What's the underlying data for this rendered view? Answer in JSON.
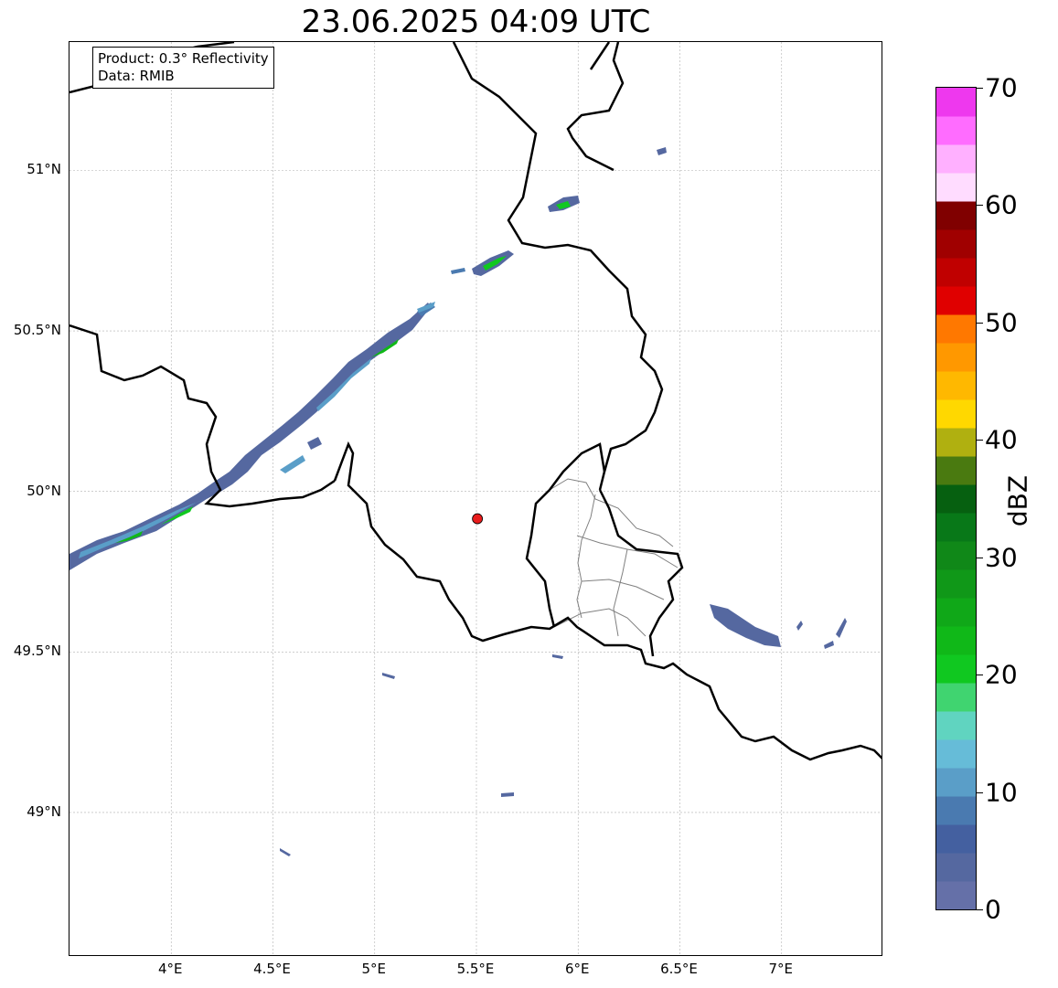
{
  "title": "23.06.2025 04:09 UTC",
  "info_box": {
    "product": "Product: 0.3° Reflectivity",
    "data": "Data: RMIB"
  },
  "map": {
    "lon_range": [
      3.5,
      7.5
    ],
    "lat_range": [
      48.55,
      51.4
    ],
    "x_ticks": [
      {
        "value": 4.0,
        "label": "4°E"
      },
      {
        "value": 4.5,
        "label": "4.5°E"
      },
      {
        "value": 5.0,
        "label": "5°E"
      },
      {
        "value": 5.5,
        "label": "5.5°E"
      },
      {
        "value": 6.0,
        "label": "6°E"
      },
      {
        "value": 6.5,
        "label": "6.5°E"
      },
      {
        "value": 7.0,
        "label": "7°E"
      }
    ],
    "y_ticks": [
      {
        "value": 51.0,
        "label": "51°N"
      },
      {
        "value": 50.5,
        "label": "50.5°N"
      },
      {
        "value": 50.0,
        "label": "50°N"
      },
      {
        "value": 49.5,
        "label": "49.5°N"
      },
      {
        "value": 49.0,
        "label": "49°N"
      }
    ],
    "grid": true,
    "radar_site": {
      "lon": 5.505,
      "lat": 49.915,
      "color": "#e81c1c"
    },
    "border_color": "#000000",
    "admin_color": "#808080"
  },
  "colorbar": {
    "label": "dBZ",
    "range": [
      0,
      70
    ],
    "ticks": [
      {
        "value": 0,
        "label": "0"
      },
      {
        "value": 10,
        "label": "10"
      },
      {
        "value": 20,
        "label": "20"
      },
      {
        "value": 30,
        "label": "30"
      },
      {
        "value": 40,
        "label": "40"
      },
      {
        "value": 50,
        "label": "50"
      },
      {
        "value": 60,
        "label": "60"
      },
      {
        "value": 70,
        "label": "70"
      }
    ],
    "colors": [
      "#6570a8",
      "#5568a0",
      "#4460a0",
      "#4a7ab0",
      "#5a9ec8",
      "#66bcd8",
      "#60d4c0",
      "#40d470",
      "#10c820",
      "#10b818",
      "#10a818",
      "#109818",
      "#108818",
      "#087818",
      "#066010",
      "#4a7a10",
      "#b0b010",
      "#ffd800",
      "#ffb800",
      "#ff9800",
      "#ff7800",
      "#e00000",
      "#c00000",
      "#a00000",
      "#800000",
      "#ffdcff",
      "#ffb0ff",
      "#ff6cff",
      "#ee38ee"
    ]
  }
}
